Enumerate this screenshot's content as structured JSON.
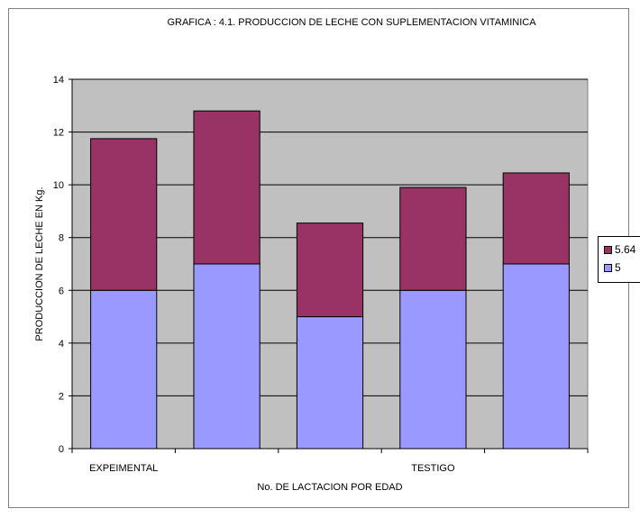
{
  "chart_data": {
    "type": "bar",
    "stacked": true,
    "title": "GRAFICA : 4.1.  PRODUCCION DE LECHE CON SUPLEMENTACION VITAMINICA",
    "xlabel": "No. DE LACTACION POR EDAD",
    "ylabel": "PRODUCCION DE  LECHE EN Kg.",
    "ylim": [
      0,
      14
    ],
    "yticks": [
      0,
      2,
      4,
      6,
      8,
      10,
      12,
      14
    ],
    "categories": [
      "EXPEIMENTAL",
      "",
      "",
      "TESTIGO",
      ""
    ],
    "series": [
      {
        "name": "5",
        "color": "#9999ff",
        "values": [
          6,
          7,
          5,
          6,
          7
        ]
      },
      {
        "name": "5.64",
        "color": "#993366",
        "values": [
          5.75,
          5.8,
          3.55,
          3.9,
          3.45
        ]
      }
    ],
    "grid": true,
    "plot_background": "#c0c0c0",
    "legend_position": "right"
  }
}
